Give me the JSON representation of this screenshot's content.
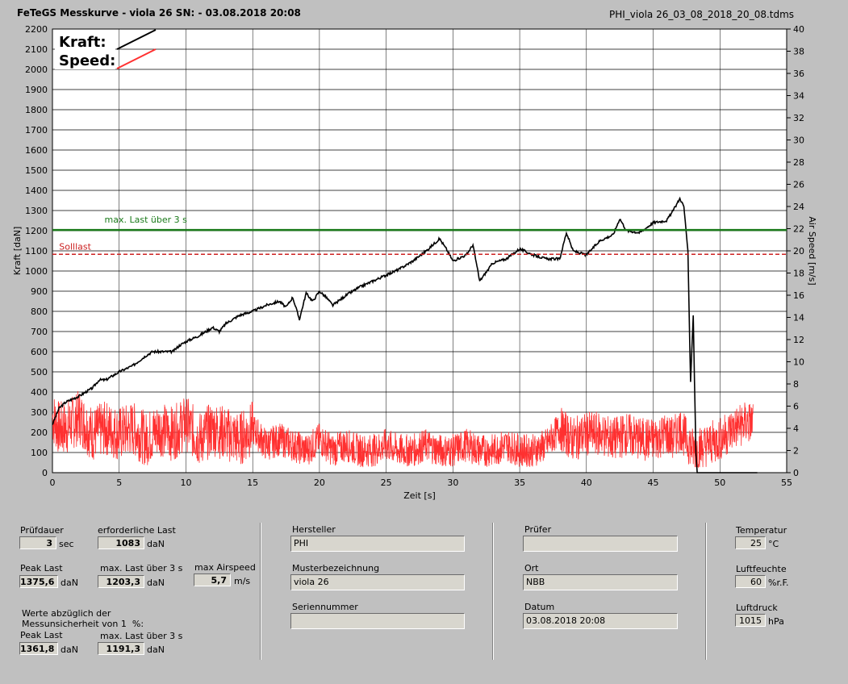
{
  "header": {
    "title": "FeTeGS Messkurve - viola 26  SN:  - 03.08.2018 20:08",
    "filename": "PHI_viola 26_03_08_2018_20_08.tdms"
  },
  "chart_data": {
    "type": "line",
    "xlabel": "Zeit [s]",
    "ylabel": "Kraft [daN]",
    "y2label": "Air Speed [m/s]",
    "xlim": [
      0,
      55
    ],
    "ylim": [
      0,
      2200
    ],
    "y2lim": [
      0,
      40
    ],
    "xticks": [
      0,
      5,
      10,
      15,
      20,
      25,
      30,
      35,
      40,
      45,
      50,
      55
    ],
    "yticks": [
      0,
      100,
      200,
      300,
      400,
      500,
      600,
      700,
      800,
      900,
      1000,
      1100,
      1200,
      1300,
      1400,
      1500,
      1600,
      1700,
      1800,
      1900,
      2000,
      2100,
      2200
    ],
    "y2ticks": [
      0,
      2,
      4,
      6,
      8,
      10,
      12,
      14,
      16,
      18,
      20,
      22,
      24,
      26,
      28,
      30,
      32,
      34,
      36,
      38,
      40
    ],
    "grid": true,
    "legend": {
      "position": "top-left",
      "kraft": "Kraft:",
      "speed": "Speed:"
    },
    "hlines": [
      {
        "label": "max. Last über  3 s",
        "value": 1203.3,
        "color": "#1a7a1a"
      },
      {
        "label": "Solllast",
        "value": 1083,
        "color": "#cc2222"
      }
    ],
    "series": [
      {
        "name": "Kraft",
        "color": "#000000",
        "axis": "left",
        "x": [
          0,
          0.5,
          1,
          2,
          3,
          3.5,
          4,
          5,
          6,
          7,
          7.5,
          8,
          9,
          9.5,
          10,
          11,
          12,
          12.5,
          13,
          14,
          15,
          16,
          17,
          17.5,
          18,
          18.5,
          19,
          19.5,
          20,
          20.5,
          21,
          22,
          23,
          24,
          25,
          26,
          27,
          28,
          29,
          29.5,
          30,
          31,
          31.5,
          32,
          33,
          34,
          35,
          36,
          37,
          38,
          38.5,
          39,
          40,
          41,
          42,
          42.5,
          43,
          44,
          45,
          46,
          46.5,
          47,
          47.3,
          47.6,
          47.8,
          48,
          48.2,
          48.3,
          49,
          50,
          51,
          52,
          52.8
        ],
        "y": [
          240,
          320,
          350,
          380,
          420,
          460,
          460,
          500,
          530,
          580,
          600,
          600,
          600,
          630,
          650,
          680,
          720,
          700,
          740,
          780,
          800,
          830,
          850,
          820,
          870,
          760,
          890,
          850,
          900,
          870,
          830,
          880,
          920,
          950,
          980,
          1010,
          1050,
          1100,
          1160,
          1110,
          1050,
          1080,
          1130,
          950,
          1040,
          1060,
          1110,
          1080,
          1060,
          1060,
          1190,
          1100,
          1080,
          1150,
          1180,
          1260,
          1200,
          1190,
          1240,
          1250,
          1300,
          1360,
          1320,
          1100,
          450,
          780,
          100,
          0,
          0,
          0,
          0,
          0,
          0
        ]
      },
      {
        "name": "Speed",
        "color": "#ff3030",
        "axis": "right",
        "x": [
          0,
          0.5,
          1,
          2,
          3,
          4,
          5,
          6,
          7,
          8,
          9,
          10,
          11,
          12,
          13,
          14,
          15,
          16,
          17,
          18,
          19,
          20,
          21,
          22,
          23,
          24,
          25,
          26,
          27,
          28,
          29,
          30,
          31,
          32,
          33,
          34,
          35,
          36,
          37,
          38,
          39,
          40,
          41,
          42,
          43,
          44,
          45,
          46,
          46.5,
          47,
          47.5,
          47.8,
          48,
          49,
          50,
          51,
          52,
          52.5
        ],
        "y": [
          5,
          4,
          4,
          5,
          3.5,
          4,
          3.5,
          4,
          3,
          4,
          3.5,
          4.5,
          3,
          4,
          3.5,
          3,
          4,
          2.5,
          3,
          2.5,
          2,
          3,
          2,
          2.5,
          2,
          2,
          2.5,
          2,
          2,
          2.5,
          2,
          2,
          2.5,
          2,
          2,
          2.5,
          2,
          2,
          2.5,
          4,
          3,
          3.5,
          3.5,
          3,
          3.5,
          3,
          3,
          3.5,
          3,
          4,
          3,
          2.5,
          2,
          2.5,
          3,
          4,
          4.5,
          4.5
        ]
      }
    ]
  },
  "panel": {
    "pruefdauer": {
      "label": "Prüfdauer",
      "value": "3",
      "unit": "sec"
    },
    "erforderliche_last": {
      "label": "erforderliche Last",
      "value": "1083",
      "unit": "daN"
    },
    "peak_last": {
      "label": "Peak Last",
      "value": "1375,6",
      "unit": "daN"
    },
    "max_last": {
      "label": "max. Last über  3 s",
      "value": "1203,3",
      "unit": "daN"
    },
    "max_airspeed": {
      "label": "max Airspeed",
      "value": "5,7",
      "unit": "m/s"
    },
    "werte_label": "Werte abzüglich der\nMessunsicherheit von 1  %:",
    "peak_last_abz": {
      "label": "Peak Last",
      "value": "1361,8",
      "unit": "daN"
    },
    "max_last_abz": {
      "label": "max. Last über  3 s",
      "value": "1191,3",
      "unit": "daN"
    },
    "hersteller": {
      "label": "Hersteller",
      "value": "PHI"
    },
    "musterbezeichnung": {
      "label": "Musterbezeichnung",
      "value": "viola 26"
    },
    "seriennummer": {
      "label": "Seriennummer",
      "value": ""
    },
    "pruefer": {
      "label": "Prüfer",
      "value": ""
    },
    "ort": {
      "label": "Ort",
      "value": "NBB"
    },
    "datum": {
      "label": "Datum",
      "value": "03.08.2018 20:08"
    },
    "temperatur": {
      "label": "Temperatur",
      "value": "25",
      "unit": "°C"
    },
    "luftfeuchte": {
      "label": "Luftfeuchte",
      "value": "60",
      "unit": "%r.F."
    },
    "luftdruck": {
      "label": "Luftdruck",
      "value": "1015",
      "unit": "hPa"
    }
  }
}
